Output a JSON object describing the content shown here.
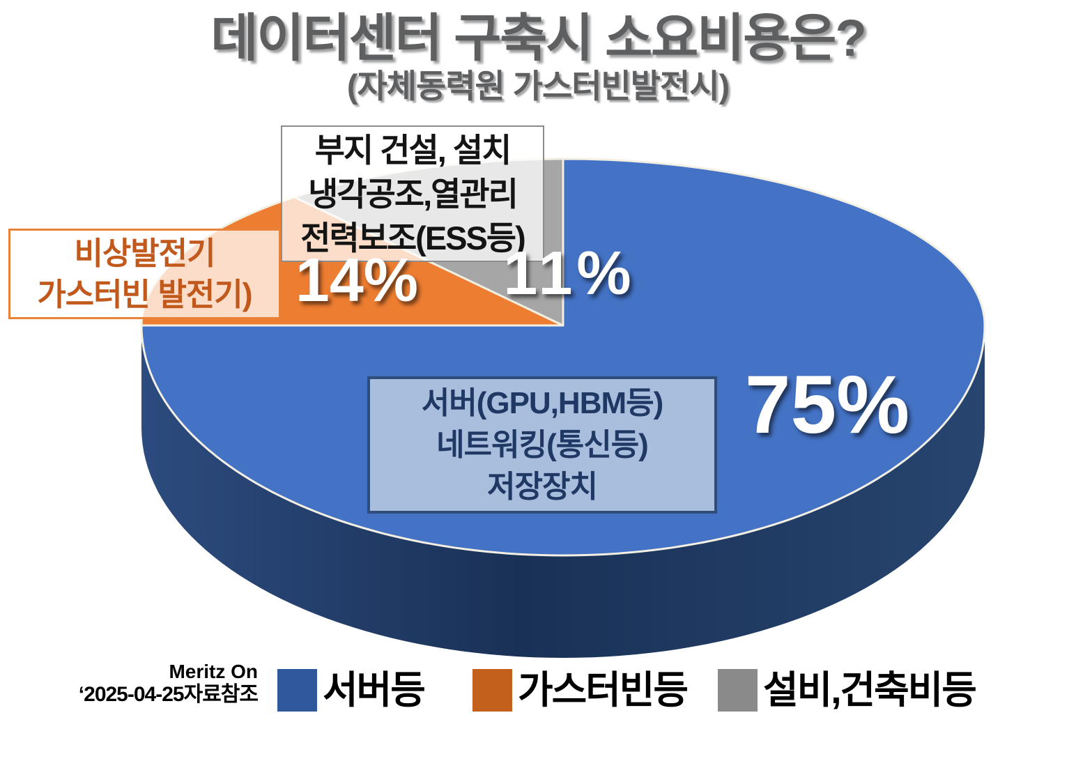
{
  "chart_data": {
    "type": "pie",
    "render_style": "3d",
    "title": "데이터센터 구축시 소요비용은?",
    "subtitle": "(자체동력원 가스터빈발전시)",
    "categories": [
      "서버등",
      "가스터빈등",
      "설비,건축비등"
    ],
    "values": [
      75,
      14,
      11
    ],
    "unit": "%",
    "value_labels": [
      "75%",
      "14%",
      "11%"
    ],
    "colors": [
      "#4472C4",
      "#ED7D31",
      "#A6A6A6"
    ],
    "side_color": "#1F3A63",
    "slice_border_color": "#F3EFE3",
    "legend_swatch_colors": [
      "#30599B",
      "#C2601C",
      "#8A8A8A"
    ],
    "start_angle_deg": 0,
    "direction": "clockwise",
    "legend_position": "bottom",
    "annotations": [
      {
        "slice": "서버등",
        "lines": [
          "서버(GPU,HBM등)",
          "네트워킹(통신등)",
          "저장장치"
        ]
      },
      {
        "slice": "가스터빈등",
        "lines": [
          "비상발전기",
          "가스터빈 발전기)"
        ]
      },
      {
        "slice": "설비,건축비등",
        "lines": [
          "부지 건설, 설치",
          "냉각공조,열관리",
          "전력보조(ESS등)"
        ]
      }
    ]
  },
  "source": {
    "line1": "Meritz On",
    "line2": "‘2025-04-25자료참조"
  }
}
